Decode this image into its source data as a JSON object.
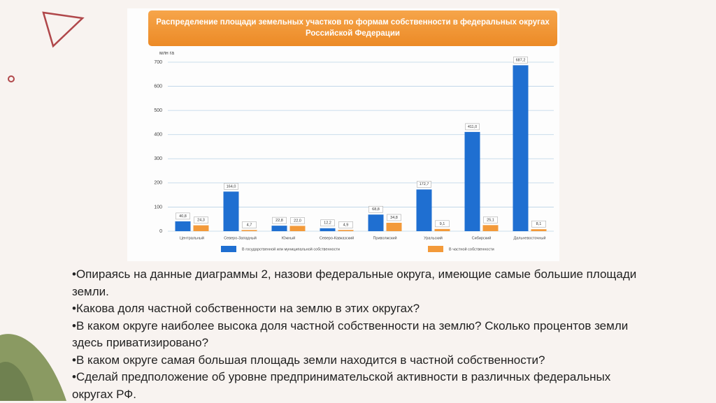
{
  "chart_data": {
    "type": "bar",
    "title": "Распределение площади земельных участков по формам собственности в федеральных округах Российской Федерации",
    "y_label": "млн га",
    "categories": [
      "Центральный",
      "Северо-Западный",
      "Южный",
      "Северо-Кавказский",
      "Приволжский",
      "Уральский",
      "Сибирский",
      "Дальневосточный"
    ],
    "series": [
      {
        "name": "В государственной или муниципальной собственности",
        "color": "#1f6fd1",
        "values": [
          40.8,
          164.0,
          22.8,
          12.2,
          68.8,
          172.7,
          411.0,
          687.2
        ],
        "value_labels": [
          "40,8",
          "164,0",
          "22,8",
          "12,2",
          "68,8",
          "172,7",
          "411,0",
          "687,2"
        ]
      },
      {
        "name": "В частной собственности",
        "color": "#f39a3a",
        "values": [
          24.3,
          4.7,
          22.0,
          4.9,
          34.8,
          9.1,
          25.1,
          8.1
        ],
        "value_labels": [
          "24,3",
          "4,7",
          "22,0",
          "4,9",
          "34,8",
          "9,1",
          "25,1",
          "8,1"
        ]
      }
    ],
    "ylim": [
      0,
      700
    ],
    "yticks": [
      0,
      100,
      200,
      300,
      400,
      500,
      600,
      700
    ],
    "grid": true
  },
  "bullets": [
    "•Опираясь на данные диаграммы 2, назови федеральные округа, имеющие самые большие площади земли.",
    "•Какова доля частной собственности на землю в этих округах?",
    "•В каком округе наиболее высока доля частной собственности на землю? Сколько процентов земли здесь приватизировано?",
    "•В каком округе самая большая площадь земли находится в частной собственности?",
    "•Сделай предположение об уровне предпринимательской активности в различных федеральных округах РФ."
  ]
}
